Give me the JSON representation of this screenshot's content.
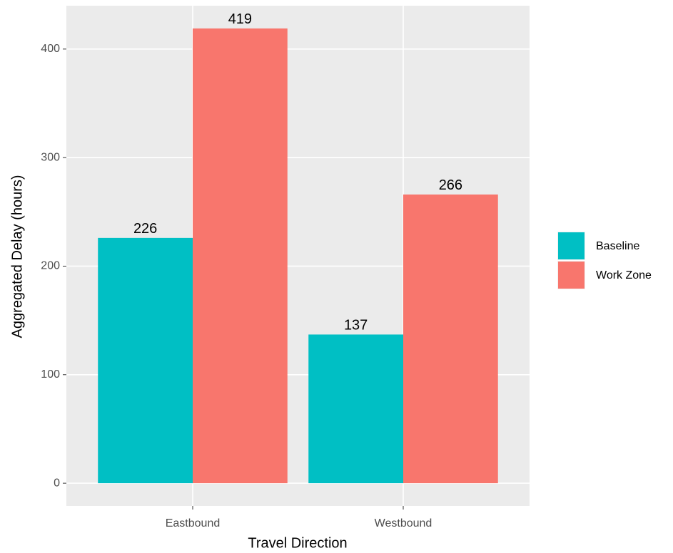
{
  "chart_data": {
    "type": "bar",
    "x_label": "Travel Direction",
    "y_label": "Aggregated Delay (hours)",
    "categories": [
      "Eastbound",
      "Westbound"
    ],
    "series": [
      {
        "name": "Baseline",
        "color": "#00BFC4",
        "values": [
          226,
          137
        ]
      },
      {
        "name": "Work Zone",
        "color": "#F8766D",
        "values": [
          419,
          266
        ]
      }
    ],
    "ylim": [
      -20.95,
      439.95
    ],
    "yticks": [
      0,
      100,
      200,
      300,
      400
    ],
    "grid": true,
    "legend": "right"
  }
}
